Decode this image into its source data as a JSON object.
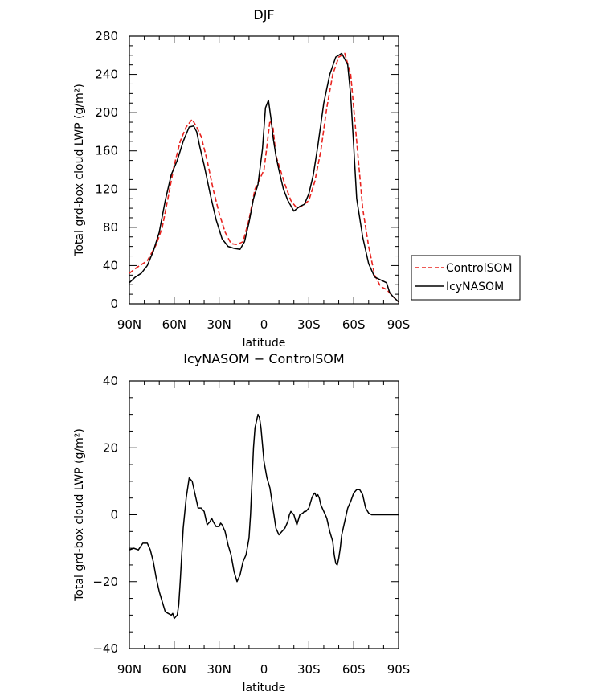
{
  "chart_data": [
    {
      "type": "line",
      "title": "DJF",
      "xlabel": "latitude",
      "ylabel": "Total grd-box cloud LWP (g/m²)",
      "xlim": [
        90,
        -90
      ],
      "ylim": [
        0,
        280
      ],
      "x_tick_values": [
        90,
        60,
        30,
        0,
        -30,
        -60,
        -90
      ],
      "x_tick_labels": [
        "90N",
        "60N",
        "30N",
        "0",
        "30S",
        "60S",
        "90S"
      ],
      "y_tick_values": [
        0,
        40,
        80,
        120,
        160,
        200,
        240,
        280
      ],
      "y_tick_labels": [
        "0",
        "40",
        "80",
        "120",
        "160",
        "200",
        "240",
        "280"
      ],
      "legend": {
        "placement": "outside-right"
      },
      "series": [
        {
          "name": "ControlSOM",
          "color": "#e8231f",
          "dash": "dashed",
          "x": [
            90,
            85,
            78,
            72,
            68,
            64,
            60,
            56,
            52,
            48,
            45,
            42,
            38,
            34,
            30,
            26,
            22,
            18,
            14,
            10,
            6,
            3,
            0,
            -2,
            -4,
            -6,
            -8,
            -11,
            -14,
            -18,
            -22,
            -26,
            -30,
            -34,
            -38,
            -42,
            -46,
            -50,
            -54,
            -58,
            -62,
            -66,
            -70,
            -74,
            -78,
            -82,
            -86,
            -90
          ],
          "y": [
            32,
            38,
            45,
            62,
            80,
            112,
            145,
            170,
            185,
            193,
            185,
            175,
            150,
            120,
            95,
            75,
            63,
            62,
            65,
            88,
            120,
            130,
            140,
            165,
            192,
            185,
            155,
            140,
            125,
            108,
            100,
            103,
            108,
            128,
            160,
            205,
            240,
            258,
            262,
            240,
            170,
            100,
            60,
            30,
            18,
            15,
            8,
            2
          ]
        },
        {
          "name": "IcyNASOM",
          "color": "#000000",
          "dash": "solid",
          "x": [
            90,
            86,
            82,
            78,
            74,
            70,
            66,
            62,
            58,
            54,
            50,
            47,
            45,
            43,
            40,
            36,
            32,
            28,
            24,
            20,
            16,
            13,
            10,
            7,
            4,
            1,
            -1,
            -3,
            -5,
            -6,
            -8,
            -10,
            -13,
            -16,
            -20,
            -24,
            -27,
            -30,
            -33,
            -36,
            -40,
            -44,
            -48,
            -52,
            -56,
            -58,
            -60,
            -62,
            -66,
            -70,
            -74,
            -78,
            -82,
            -84,
            -86,
            -88,
            -90
          ],
          "y": [
            22,
            28,
            32,
            40,
            55,
            75,
            108,
            135,
            150,
            170,
            185,
            186,
            180,
            165,
            145,
            115,
            88,
            68,
            60,
            58,
            57,
            65,
            85,
            110,
            125,
            162,
            205,
            213,
            190,
            175,
            155,
            140,
            120,
            108,
            97,
            102,
            104,
            115,
            135,
            165,
            210,
            240,
            258,
            262,
            250,
            218,
            165,
            110,
            70,
            42,
            28,
            25,
            22,
            12,
            8,
            5,
            2
          ]
        }
      ]
    },
    {
      "type": "line",
      "title": "IcyNASOM − ControlSOM",
      "xlabel": "latitude",
      "ylabel": "Total grd-box cloud LWP (g/m²)",
      "xlim": [
        90,
        -90
      ],
      "ylim": [
        -40,
        40
      ],
      "x_tick_values": [
        90,
        60,
        30,
        0,
        -30,
        -60,
        -90
      ],
      "x_tick_labels": [
        "90N",
        "60N",
        "30N",
        "0",
        "30S",
        "60S",
        "90S"
      ],
      "y_tick_values": [
        -40,
        -20,
        0,
        20,
        40
      ],
      "y_tick_labels": [
        "−40",
        "−20",
        "0",
        "20",
        "40"
      ],
      "series": [
        {
          "color": "#000000",
          "dash": "solid",
          "x": [
            90,
            87,
            84,
            81,
            78,
            76,
            74,
            72,
            70,
            68,
            66,
            64,
            62,
            61,
            60,
            58,
            57,
            56,
            55,
            54,
            52,
            50,
            48,
            46,
            44,
            42,
            40,
            39,
            38,
            36,
            35,
            34,
            32,
            30,
            29,
            28,
            26,
            25,
            24,
            22,
            20,
            18,
            16,
            14,
            12,
            10,
            9,
            8,
            7,
            6,
            4,
            3,
            2,
            0,
            -2,
            -4,
            -5,
            -6,
            -7,
            -8,
            -9,
            -10,
            -11,
            -12,
            -13,
            -14,
            -16,
            -17,
            -18,
            -20,
            -22,
            -24,
            -26,
            -27,
            -28,
            -30,
            -32,
            -33,
            -34,
            -35,
            -36,
            -37,
            -38,
            -40,
            -42,
            -44,
            -46,
            -47,
            -48,
            -49,
            -50,
            -51,
            -52,
            -54,
            -56,
            -58,
            -60,
            -62,
            -64,
            -66,
            -67,
            -68,
            -70,
            -72,
            -74,
            -76,
            -78,
            -80,
            -81,
            -82,
            -84,
            -86,
            -88,
            -90
          ],
          "y": [
            -10.5,
            -10,
            -10.5,
            -8.5,
            -8.5,
            -10.5,
            -14,
            -19,
            -23,
            -26,
            -29,
            -29.5,
            -30,
            -29.5,
            -31,
            -30,
            -27,
            -20,
            -12,
            -4,
            5,
            11,
            10,
            6,
            2,
            2,
            1,
            -1,
            -3,
            -2,
            -1,
            -2,
            -3.5,
            -3.5,
            -2.5,
            -3,
            -5,
            -7,
            -9,
            -12,
            -17,
            -20,
            -18,
            -14,
            -12,
            -7,
            0,
            10,
            20,
            26,
            30,
            29,
            26,
            16,
            11,
            8,
            5,
            2,
            -1,
            -4,
            -5,
            -6,
            -5.5,
            -5,
            -4.5,
            -4,
            -2,
            0,
            1,
            0,
            -3,
            0,
            0.5,
            1,
            1,
            2,
            5,
            6,
            6.5,
            5.5,
            6,
            5,
            3,
            1,
            -1,
            -5,
            -8,
            -12,
            -14.5,
            -15,
            -13,
            -10,
            -6,
            -2,
            2,
            4,
            6.5,
            7.5,
            7.5,
            6,
            4,
            2,
            0.5,
            0,
            0,
            0,
            0,
            0,
            0,
            0,
            0,
            0,
            0,
            0
          ]
        }
      ]
    }
  ]
}
